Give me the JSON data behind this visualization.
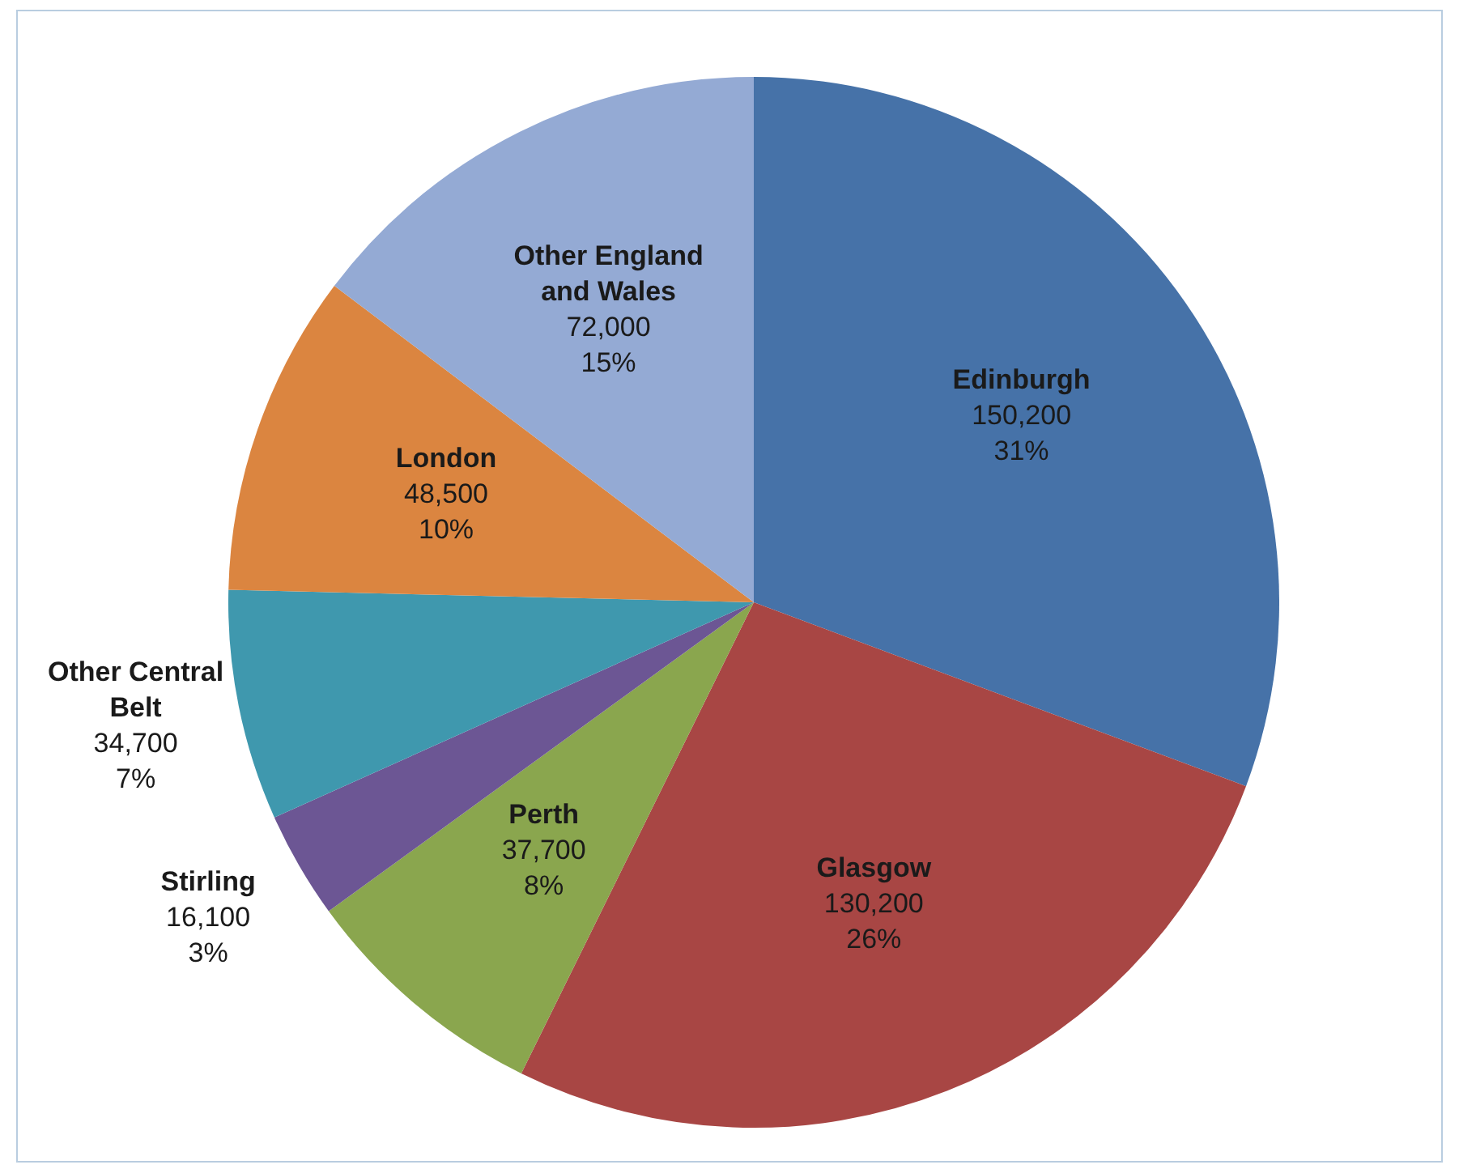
{
  "chart_data": {
    "type": "pie",
    "categories": [
      "Edinburgh",
      "Glasgow",
      "Perth",
      "Stirling",
      "Other Central Belt",
      "London",
      "Other England and Wales"
    ],
    "values": [
      150200,
      130200,
      37700,
      16100,
      34700,
      48500,
      72000
    ],
    "colors": [
      "#4672a8",
      "#a84644",
      "#8aa64e",
      "#6c5694",
      "#3f98ae",
      "#db8540",
      "#94aad4"
    ],
    "value_labels": [
      "150,200\n31%",
      "130,200\n26%",
      "37,700\n8%",
      "16,100\n3%",
      "34,700\n7%",
      "48,500\n10%",
      "72,000\n15%"
    ],
    "legend": false
  }
}
